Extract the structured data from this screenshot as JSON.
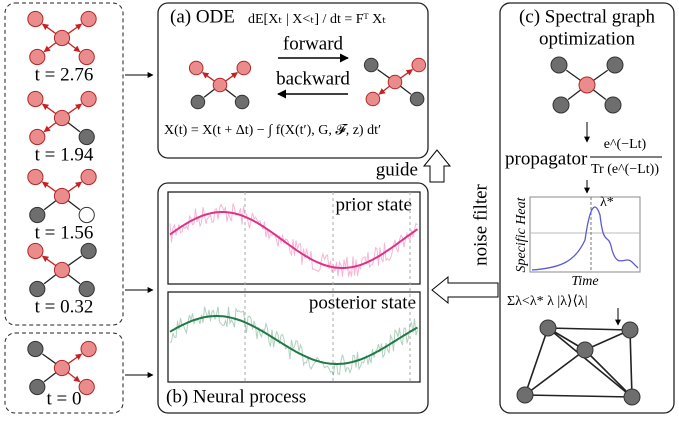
{
  "left_panel": {
    "graphs": [
      {
        "label": "t = 2.76"
      },
      {
        "label": "t = 1.94"
      },
      {
        "label": "t = 1.56"
      },
      {
        "label": "t = 0.32"
      },
      {
        "label": "t = 0"
      }
    ]
  },
  "panel_a": {
    "title": "(a) ODE",
    "equation": "dE[Xₜ | X<ₜ] / dt = Fᵀ Xₜ",
    "forward": "forward",
    "backward": "backward",
    "integral": "X(t) = X(t + Δt) − ∫ f(X(t′), G, 𝓕, z) dt′"
  },
  "panel_b": {
    "title": "(b) Neural process",
    "prior": "prior state",
    "posterior": "posterior state"
  },
  "arrows": {
    "guide": "guide",
    "noise_filter": "noise filter"
  },
  "panel_c": {
    "title_line1": "(c) Spectral graph",
    "title_line2": "optimization",
    "propagator": "propagator",
    "formula_num": "e^(−Lt)",
    "formula_den": "Tr (e^(−Lt))",
    "y_label": "Specific Heat",
    "x_label": "Time",
    "peak": "λ*",
    "sum": "Σλ<λ* λ |λ⟩⟨λ|"
  }
}
